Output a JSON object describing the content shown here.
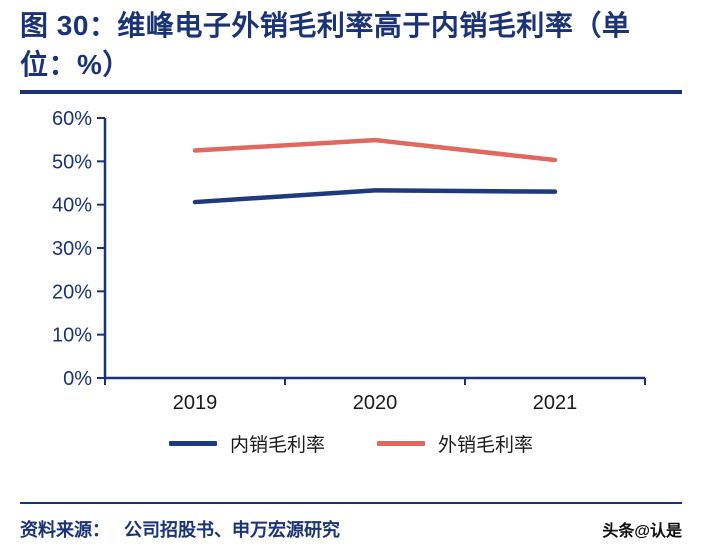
{
  "header": {
    "title": "图 30：维峰电子外销毛利率高于内销毛利率（单位：%）"
  },
  "chart_data": {
    "type": "line",
    "categories": [
      "2019",
      "2020",
      "2021"
    ],
    "series": [
      {
        "name": "内销毛利率",
        "color": "#1e3a7d",
        "values": [
          40.6,
          43.3,
          43.0
        ]
      },
      {
        "name": "外销毛利率",
        "color": "#e0695f",
        "values": [
          52.5,
          54.9,
          50.3
        ]
      }
    ],
    "title": "维峰电子外销毛利率高于内销毛利率",
    "xlabel": "",
    "ylabel": "",
    "ylim": [
      0,
      60
    ],
    "ytick_step": 10,
    "ytick_labels": [
      "0%",
      "10%",
      "20%",
      "30%",
      "40%",
      "50%",
      "60%"
    ],
    "grid": false,
    "legend_position": "bottom",
    "axis_color": "#1a3377",
    "xtick_color": "#1a1a1a"
  },
  "footer": {
    "source_label": "资料来源：",
    "source_text": "公司招股书、申万宏源研究",
    "watermark": "头条@认是"
  },
  "colors": {
    "accent": "#1a3377",
    "line_domestic": "#1e3a7d",
    "line_export": "#e0695f"
  }
}
